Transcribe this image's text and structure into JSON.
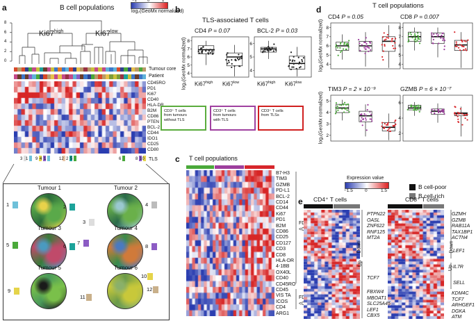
{
  "panels": {
    "a": {
      "letter": "a",
      "title": "B cell populations",
      "colorbar_label": "log₂(GeoMx normalized)",
      "colorbar_ticks": [
        "−1",
        "0",
        "1"
      ],
      "cluster_high": "Ki67",
      "cluster_high_sup": "high",
      "cluster_low": "Ki67",
      "cluster_low_sup": "low",
      "dendro_axis_ticks": [
        "0",
        "2",
        "4",
        "6",
        "8"
      ],
      "annotation_rows": [
        "Tumour core",
        "Patient"
      ],
      "genes": [
        "CD45RO",
        "PD1",
        "Ki67",
        "CD40",
        "HLA-DR",
        "B2M",
        "CD86",
        "PTEN",
        "BCL-2",
        "CD44",
        "IDO1",
        "CD25",
        "CD80"
      ],
      "tls_label": "TLS",
      "tls_numbers": [
        "3",
        "1",
        "9",
        "4",
        "1",
        "12",
        "2",
        "5",
        "6",
        "8",
        "10"
      ],
      "tumours": [
        "Tumour 1",
        "Tumour 2",
        "Tumour 3",
        "Tumour 4",
        "Tumour 5",
        "Tumour 6"
      ],
      "roi_numbers": [
        "1",
        "2",
        "4",
        "3",
        "5",
        "6",
        "7",
        "8",
        "10",
        "9",
        "12",
        "11"
      ]
    },
    "b": {
      "letter": "b",
      "title": "TLS-associated T cells",
      "ylabel": "log₂(GeoMx normalized)",
      "plots": [
        {
          "title": "CD4 ",
          "p": "P = 0.07",
          "ticks": [
            "4",
            "5",
            "6",
            "7",
            "8"
          ]
        },
        {
          "title": "BCL-2 ",
          "p": "P = 0.03",
          "ticks": [
            "4",
            "5",
            "6"
          ]
        }
      ],
      "xcats": [
        {
          "base": "Ki67",
          "sup": "high"
        },
        {
          "base": "Ki67",
          "sup": "low"
        }
      ],
      "legend": [
        {
          "l1": "CD3⁺ T cells",
          "l2": "from tumours",
          "l3": "without TLS",
          "color": "#5aac3c"
        },
        {
          "l1": "CD3⁺ T cells",
          "l2": "from tumours",
          "l3": "with TLS",
          "color": "#a040a0"
        },
        {
          "l1": "CD3⁺ T cells",
          "l2": "from TLSs",
          "l3": "",
          "color": "#d02020"
        }
      ]
    },
    "c": {
      "letter": "c",
      "title": "T cell populations",
      "genes": [
        "B7-H3",
        "TIM3",
        "GZMB",
        "PD-L1",
        "BCL-2",
        "CD14",
        "CD44",
        "Ki67",
        "PD1",
        "B2M",
        "CD86",
        "CD25",
        "CD127",
        "CD3",
        "CD8",
        "HLA-DR",
        "4-1BB",
        "OX40L",
        "CD40",
        "CD45RO",
        "CD45",
        "VIS TA",
        "ICOS",
        "CD4",
        "ARG1"
      ],
      "fdr1": "FDR",
      "fdr1b": "<0.05",
      "fdr2": "FDR",
      "fdr2b": "<0.1"
    },
    "d": {
      "letter": "d",
      "title": "T cell populations",
      "ylabel": "log₂(GeoMx normalized)",
      "plots": [
        {
          "title": "CD4 ",
          "p": "P = 0.05",
          "ticks": [
            "4",
            "5",
            "6",
            "7",
            "8"
          ]
        },
        {
          "title": "CD8 ",
          "p": "P = 0.007",
          "ticks": [
            "4",
            "5",
            "6",
            "7",
            "8"
          ]
        },
        {
          "title": "TIM3 ",
          "p": "P = 2 × 10⁻⁹",
          "ticks": [
            "2",
            "3",
            "4",
            "5"
          ]
        },
        {
          "title": "GZMB ",
          "p": "P = 6 × 10⁻⁷",
          "ticks": [
            "2",
            "4",
            "6"
          ]
        }
      ]
    },
    "e": {
      "letter": "e",
      "colorbar_label": "Expression value",
      "colorbar_ticks": [
        "−1.5",
        "0",
        "1.5"
      ],
      "legend": [
        {
          "label": "B cell-poor",
          "color": "#111111"
        },
        {
          "label": "B cell-rich",
          "color": "#777777"
        }
      ],
      "cd4_title": "CD4⁺ T cells",
      "cd8_title": "CD8⁺ T cells",
      "cd4_down_genes": [
        "PTPN22",
        "OASL",
        "ZNF622",
        "RNF125",
        "MT2A"
      ],
      "cd4_up_genes": [
        "TCF7",
        "FBXW4",
        "MBOAT1",
        "SLC25A45",
        "LEF1",
        "CBX5"
      ],
      "cd8_down_genes": [
        "GZMH",
        "GZMB",
        "RAB11A",
        "TAX1BP1",
        "ACTN4"
      ],
      "cd8_up_genes": [
        "LEF1",
        "IL7R",
        "SELL",
        "KDM4C",
        "TCF7",
        "ARHGEF1",
        "DGKA",
        "ATM"
      ],
      "down": "Down",
      "up": "Up"
    }
  },
  "colors": {
    "red": "#d7262b",
    "blue": "#2b3fae",
    "green": "#4aa93a",
    "purple": "#9d3f9d"
  }
}
